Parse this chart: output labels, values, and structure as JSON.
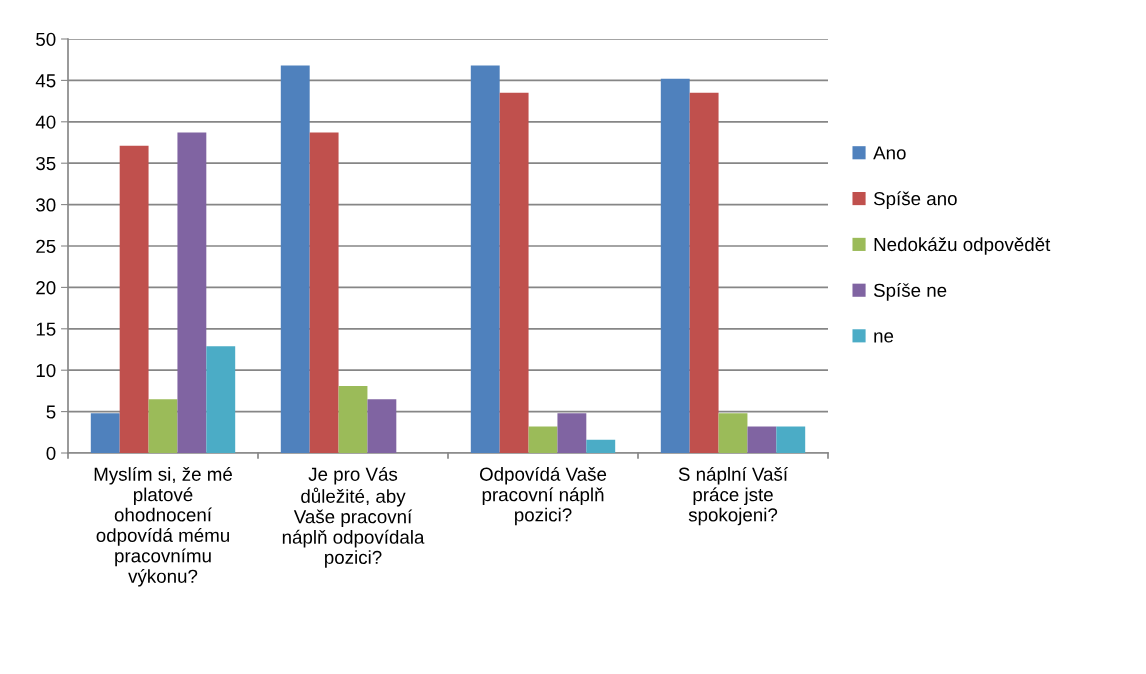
{
  "chart_data": {
    "type": "bar",
    "categories": [
      "Myslím si, že mé\nplatové\nohodnocení\nodpovídá mému\npracovnímu\nvýkonu?",
      "Je pro Vás\ndůležité, aby\nVaše pracovní\nnáplň odpovídala\npozici?",
      "Odpovídá Vaše\npracovní náplň\npozici?",
      "S náplní Vaší\npráce jste\nspokojeni?"
    ],
    "series": [
      {
        "name": "Ano",
        "color": "#4f81bd",
        "values": [
          4.8,
          46.8,
          46.8,
          45.2
        ]
      },
      {
        "name": "Spíše ano",
        "color": "#c0504d",
        "values": [
          37.1,
          38.7,
          43.5,
          43.5
        ]
      },
      {
        "name": "Nedokážu odpovědět",
        "color": "#9bbb59",
        "values": [
          6.5,
          8.1,
          3.2,
          4.8
        ]
      },
      {
        "name": "Spíše ne",
        "color": "#8064a2",
        "values": [
          38.7,
          6.5,
          4.8,
          3.2
        ]
      },
      {
        "name": "ne",
        "color": "#4bacc6",
        "values": [
          12.9,
          0,
          1.6,
          3.2
        ]
      }
    ],
    "ylim": [
      0,
      50
    ],
    "yticks": [
      0,
      5,
      10,
      15,
      20,
      25,
      30,
      35,
      40,
      45,
      50
    ],
    "grid": "y",
    "legend": "right"
  }
}
